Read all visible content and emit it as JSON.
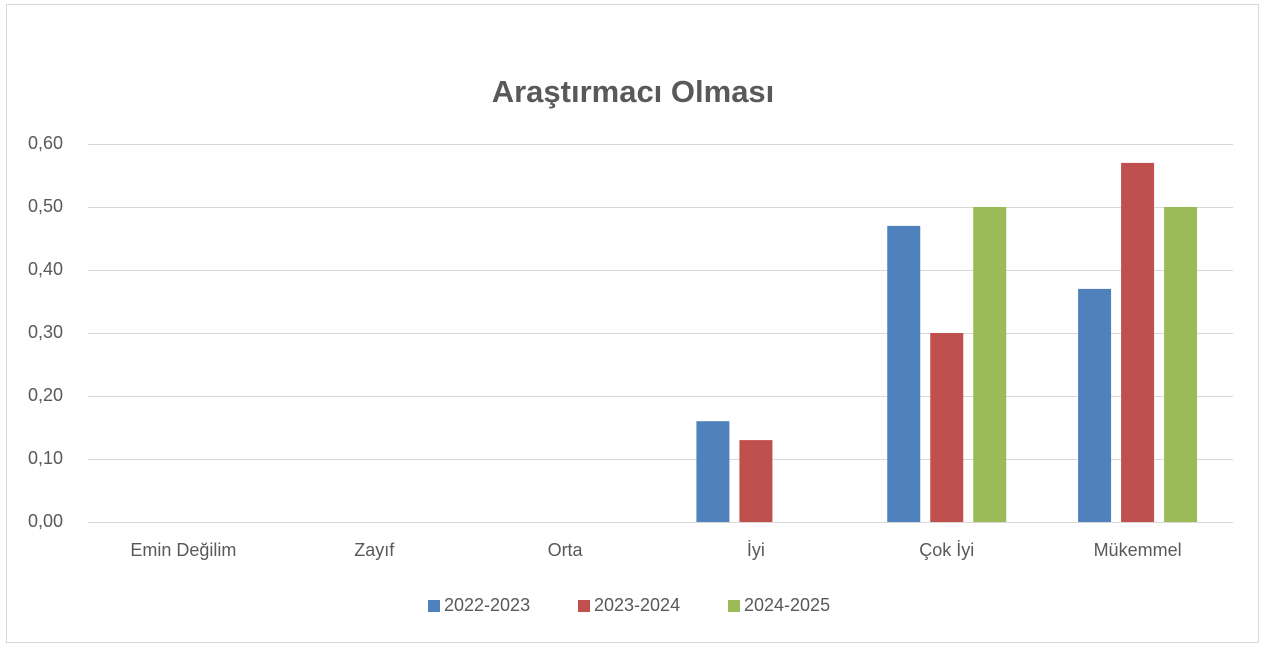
{
  "chart_data": {
    "type": "bar",
    "title": "Araştırmacı Olması",
    "categories": [
      "Emin Değilim",
      "Zayıf",
      "Orta",
      "İyi",
      "Çok İyi",
      "Mükemmel"
    ],
    "series": [
      {
        "name": "2022-2023",
        "color": "#4f81bd",
        "values": [
          0,
          0,
          0,
          0.16,
          0.47,
          0.37
        ]
      },
      {
        "name": "2023-2024",
        "color": "#c0504d",
        "values": [
          0,
          0,
          0,
          0.13,
          0.3,
          0.57
        ]
      },
      {
        "name": "2024-2025",
        "color": "#9bbb59",
        "values": [
          0,
          0,
          0,
          0,
          0.5,
          0.5
        ]
      }
    ],
    "ylim": [
      0,
      0.6
    ],
    "yticks": [
      {
        "value": 0,
        "label": "0,00"
      },
      {
        "value": 0.1,
        "label": "0,10"
      },
      {
        "value": 0.2,
        "label": "0,20"
      },
      {
        "value": 0.3,
        "label": "0,30"
      },
      {
        "value": 0.4,
        "label": "0,40"
      },
      {
        "value": 0.5,
        "label": "0,50"
      },
      {
        "value": 0.6,
        "label": "0,60"
      }
    ],
    "grid": true,
    "legend": "bottom"
  }
}
